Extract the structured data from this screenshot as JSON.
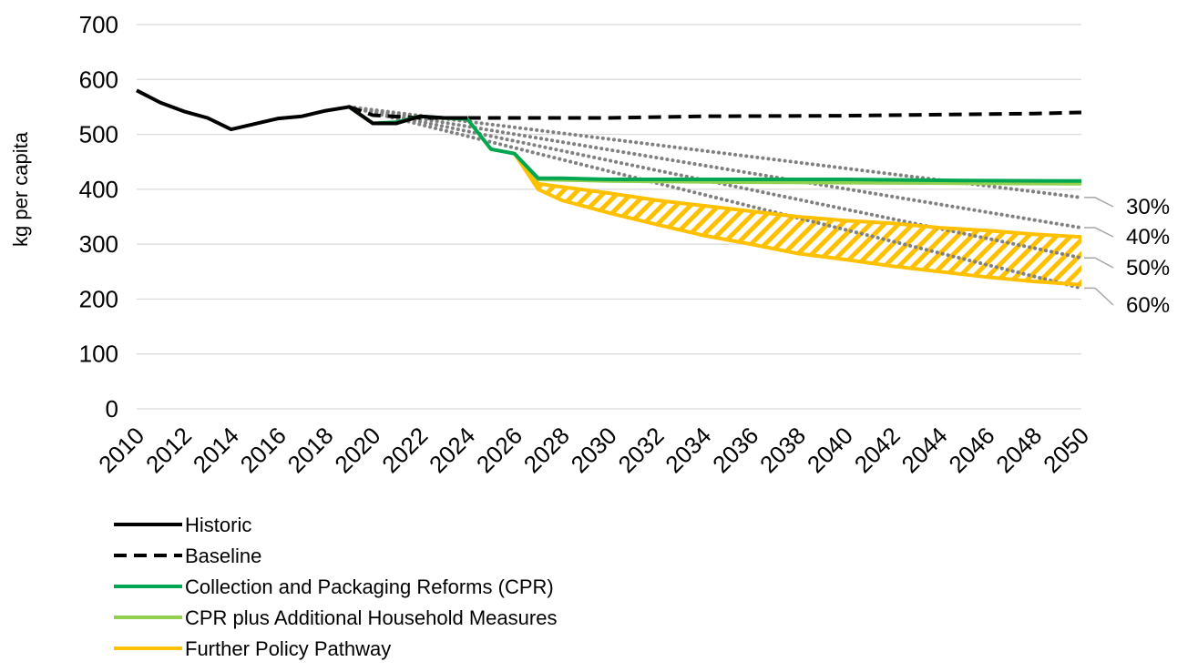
{
  "chart_data": {
    "type": "line",
    "ylabel": "kg per capita",
    "xlabel": "",
    "ylim": [
      0,
      700
    ],
    "xlim": [
      2010,
      2050
    ],
    "y_ticks": [
      0,
      100,
      200,
      300,
      400,
      500,
      600,
      700
    ],
    "x_ticks": [
      "2010",
      "2012",
      "2014",
      "2016",
      "2018",
      "2020",
      "2022",
      "2024",
      "2026",
      "2028",
      "2030",
      "2032",
      "2034",
      "2036",
      "2038",
      "2040",
      "2042",
      "2044",
      "2046",
      "2048",
      "2050"
    ],
    "grid": "horizontal",
    "legend_position": "bottom-left",
    "series": [
      {
        "name": "Historic",
        "style": "solid",
        "color": "#000000",
        "points": [
          [
            2010,
            580
          ],
          [
            2011,
            558
          ],
          [
            2012,
            542
          ],
          [
            2013,
            530
          ],
          [
            2014,
            509
          ],
          [
            2015,
            519
          ],
          [
            2016,
            529
          ],
          [
            2017,
            533
          ],
          [
            2018,
            543
          ],
          [
            2019,
            550
          ],
          [
            2020,
            520
          ],
          [
            2021,
            520
          ],
          [
            2022,
            533
          ],
          [
            2023,
            530
          ],
          [
            2024,
            530
          ]
        ]
      },
      {
        "name": "Baseline",
        "style": "dashed",
        "color": "#000000",
        "points": [
          [
            2019,
            550
          ],
          [
            2020,
            535
          ],
          [
            2022,
            530
          ],
          [
            2026,
            530
          ],
          [
            2030,
            530
          ],
          [
            2034,
            533
          ],
          [
            2040,
            534
          ],
          [
            2044,
            536
          ],
          [
            2048,
            538
          ],
          [
            2050,
            540
          ]
        ]
      },
      {
        "name": "Collection and Packaging Reforms (CPR)",
        "style": "solid",
        "color": "#00A651",
        "points": [
          [
            2019,
            550
          ],
          [
            2020,
            520
          ],
          [
            2021,
            522
          ],
          [
            2022,
            533
          ],
          [
            2023,
            530
          ],
          [
            2024,
            528
          ],
          [
            2025,
            473
          ],
          [
            2026,
            465
          ],
          [
            2027,
            420
          ],
          [
            2028,
            420
          ],
          [
            2030,
            418
          ],
          [
            2035,
            418
          ],
          [
            2040,
            418
          ],
          [
            2045,
            416
          ],
          [
            2050,
            415
          ]
        ]
      },
      {
        "name": "CPR plus Additional Household Measures",
        "style": "solid",
        "color": "#92D050",
        "points": [
          [
            2019,
            550
          ],
          [
            2020,
            520
          ],
          [
            2021,
            522
          ],
          [
            2022,
            533
          ],
          [
            2023,
            530
          ],
          [
            2024,
            528
          ],
          [
            2025,
            473
          ],
          [
            2026,
            465
          ],
          [
            2027,
            418
          ],
          [
            2028,
            417
          ],
          [
            2030,
            415
          ],
          [
            2035,
            413
          ],
          [
            2040,
            412
          ],
          [
            2045,
            411
          ],
          [
            2050,
            410
          ]
        ]
      },
      {
        "name": "Further Policy Pathway",
        "style": "solid",
        "color": "#FFC000",
        "upper": [
          [
            2026,
            465
          ],
          [
            2027,
            410
          ],
          [
            2030,
            393
          ],
          [
            2032,
            380
          ],
          [
            2034,
            370
          ],
          [
            2036,
            360
          ],
          [
            2038,
            350
          ],
          [
            2040,
            343
          ],
          [
            2042,
            338
          ],
          [
            2044,
            330
          ],
          [
            2046,
            325
          ],
          [
            2048,
            318
          ],
          [
            2050,
            313
          ]
        ],
        "lower": [
          [
            2026,
            465
          ],
          [
            2027,
            400
          ],
          [
            2028,
            380
          ],
          [
            2030,
            357
          ],
          [
            2032,
            336
          ],
          [
            2034,
            316
          ],
          [
            2036,
            300
          ],
          [
            2038,
            283
          ],
          [
            2040,
            272
          ],
          [
            2042,
            260
          ],
          [
            2044,
            250
          ],
          [
            2046,
            240
          ],
          [
            2048,
            232
          ],
          [
            2050,
            226
          ]
        ]
      }
    ],
    "target_lines": [
      {
        "label": "30%",
        "style": "dotted",
        "color": "#808080",
        "points": [
          [
            2019,
            550
          ],
          [
            2050,
            385
          ]
        ]
      },
      {
        "label": "40%",
        "style": "dotted",
        "color": "#808080",
        "points": [
          [
            2019,
            550
          ],
          [
            2050,
            330
          ]
        ]
      },
      {
        "label": "50%",
        "style": "dotted",
        "color": "#808080",
        "points": [
          [
            2019,
            550
          ],
          [
            2050,
            275
          ]
        ]
      },
      {
        "label": "60%",
        "style": "dotted",
        "color": "#808080",
        "points": [
          [
            2019,
            550
          ],
          [
            2050,
            220
          ]
        ]
      }
    ]
  }
}
